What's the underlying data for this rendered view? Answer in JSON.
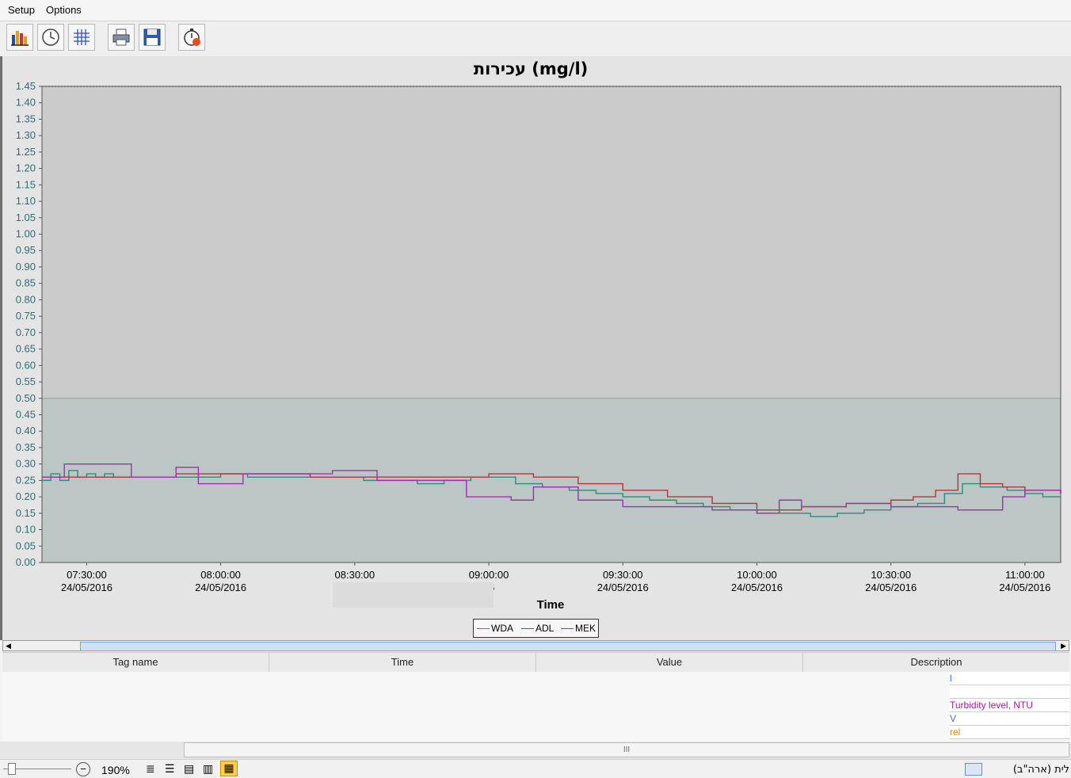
{
  "menu": {
    "setup": "Setup",
    "options": "Options"
  },
  "toolbar": {
    "buttons": [
      {
        "name": "bar-chart-icon"
      },
      {
        "name": "clock-icon"
      },
      {
        "name": "grid-icon"
      },
      {
        "name": "print-icon"
      },
      {
        "name": "save-icon"
      },
      {
        "name": "stopwatch-icon"
      }
    ]
  },
  "chart_data": {
    "type": "line",
    "title": "עכירות (mg/l)",
    "xlabel": "Time",
    "ylabel": "",
    "ylim": [
      0,
      1.45
    ],
    "yticks": [
      "0.00",
      "0.05",
      "0.10",
      "0.15",
      "0.20",
      "0.25",
      "0.30",
      "0.35",
      "0.40",
      "0.45",
      "0.50",
      "0.55",
      "0.60",
      "0.65",
      "0.70",
      "0.75",
      "0.80",
      "0.85",
      "0.90",
      "0.95",
      "1.00",
      "1.05",
      "1.10",
      "1.15",
      "1.20",
      "1.25",
      "1.30",
      "1.35",
      "1.40",
      "1.45"
    ],
    "xlim": [
      "07:20:00 24/05/2016",
      "11:08:00 24/05/2016"
    ],
    "xticks": [
      {
        "time": "07:30:00",
        "date": "24/05/2016"
      },
      {
        "time": "08:00:00",
        "date": "24/05/2016"
      },
      {
        "time": "08:30:00",
        "date": "24/0"
      },
      {
        "time": "09:00:00",
        "date": "16"
      },
      {
        "time": "09:30:00",
        "date": "24/05/2016"
      },
      {
        "time": "10:00:00",
        "date": "24/05/2016"
      },
      {
        "time": "10:30:00",
        "date": "24/05/2016"
      },
      {
        "time": "11:00:00",
        "date": "24/05/2016"
      }
    ],
    "band": {
      "from": 0,
      "to": 0.5,
      "color": "#bcc6c4"
    },
    "x_unit": "time of day (HH:MM), 24/05/2016",
    "series": [
      {
        "name": "WDA",
        "color": "#2f8a80",
        "x": [
          "07:20",
          "07:22",
          "07:24",
          "07:26",
          "07:28",
          "07:30",
          "07:32",
          "07:34",
          "07:36",
          "07:40",
          "07:44",
          "07:50",
          "07:56",
          "08:00",
          "08:06",
          "08:12",
          "08:20",
          "08:26",
          "08:32",
          "08:38",
          "08:44",
          "08:50",
          "08:56",
          "09:00",
          "09:06",
          "09:12",
          "09:18",
          "09:24",
          "09:30",
          "09:36",
          "09:42",
          "09:48",
          "09:54",
          "10:00",
          "10:06",
          "10:12",
          "10:18",
          "10:24",
          "10:30",
          "10:36",
          "10:42",
          "10:46",
          "10:50",
          "10:56",
          "11:00",
          "11:04",
          "11:08"
        ],
        "y": [
          0.25,
          0.27,
          0.25,
          0.28,
          0.26,
          0.27,
          0.26,
          0.27,
          0.26,
          0.26,
          0.26,
          0.26,
          0.26,
          0.27,
          0.26,
          0.26,
          0.26,
          0.26,
          0.25,
          0.25,
          0.24,
          0.25,
          0.26,
          0.26,
          0.24,
          0.23,
          0.22,
          0.21,
          0.2,
          0.19,
          0.18,
          0.17,
          0.16,
          0.15,
          0.15,
          0.14,
          0.15,
          0.16,
          0.17,
          0.18,
          0.21,
          0.24,
          0.23,
          0.22,
          0.21,
          0.2,
          0.2
        ]
      },
      {
        "name": "ADL",
        "color": "#b03838",
        "x": [
          "07:20",
          "07:30",
          "07:40",
          "07:50",
          "08:00",
          "08:10",
          "08:20",
          "08:30",
          "08:40",
          "08:50",
          "09:00",
          "09:10",
          "09:20",
          "09:30",
          "09:40",
          "09:50",
          "10:00",
          "10:10",
          "10:20",
          "10:30",
          "10:35",
          "10:40",
          "10:45",
          "10:50",
          "10:55",
          "11:00",
          "11:08"
        ],
        "y": [
          0.26,
          0.26,
          0.26,
          0.27,
          0.27,
          0.27,
          0.26,
          0.26,
          0.26,
          0.26,
          0.27,
          0.26,
          0.24,
          0.22,
          0.2,
          0.18,
          0.16,
          0.17,
          0.18,
          0.19,
          0.2,
          0.22,
          0.27,
          0.24,
          0.23,
          0.22,
          0.21
        ]
      },
      {
        "name": "MEK",
        "color": "#a030b0",
        "x": [
          "07:20",
          "07:25",
          "07:35",
          "07:40",
          "07:50",
          "07:55",
          "08:05",
          "08:15",
          "08:25",
          "08:35",
          "08:45",
          "08:55",
          "09:05",
          "09:10",
          "09:20",
          "09:30",
          "09:40",
          "09:50",
          "10:00",
          "10:05",
          "10:10",
          "10:20",
          "10:30",
          "10:40",
          "10:45",
          "10:55",
          "11:00",
          "11:08"
        ],
        "y": [
          0.26,
          0.3,
          0.3,
          0.26,
          0.29,
          0.24,
          0.27,
          0.27,
          0.28,
          0.25,
          0.25,
          0.2,
          0.19,
          0.23,
          0.19,
          0.17,
          0.17,
          0.16,
          0.15,
          0.19,
          0.17,
          0.18,
          0.17,
          0.17,
          0.16,
          0.2,
          0.22,
          0.21
        ]
      }
    ]
  },
  "table": {
    "headers": [
      "Tag name",
      "Time",
      "Value",
      "Description"
    ],
    "desc_rows": [
      {
        "text": "l",
        "color": "#3b6fd9"
      },
      {
        "text": "",
        "color": "#000000"
      },
      {
        "text": "Turbidity level, NTU",
        "color": "#a0209a"
      },
      {
        "text": "V",
        "color": "#3b6fd9"
      },
      {
        "text": "rel",
        "color": "#e08a1e"
      }
    ]
  },
  "scrollbar2": {
    "grip": "III"
  },
  "status": {
    "zoom": "190%",
    "language": "לית (ארה\"ב)"
  }
}
